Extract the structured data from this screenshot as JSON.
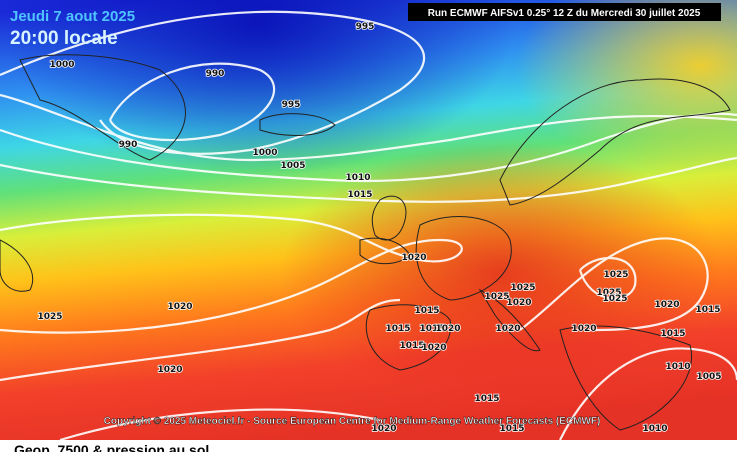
{
  "header": {
    "date": "Jeudi 7 aout 2025",
    "time": "20:00 locale",
    "run": "Run ECMWF AIFSv1 0.25° 12 Z du Mercredi 30 juillet 2025"
  },
  "footer": {
    "copyright": "Copyright © 2025 Meteociel.fr - Source European Centre for Medium-Range Weather Forecasts (ECMWF)",
    "caption": "Geop. 7500 & pression au sol"
  },
  "isobar_labels": [
    "995",
    "1000",
    "990",
    "995",
    "990",
    "1000",
    "1005",
    "1010",
    "1015",
    "1020",
    "1025",
    "1020",
    "1015",
    "1025",
    "1025",
    "1025",
    "1025",
    "1025",
    "1020",
    "1020",
    "1015",
    "1015",
    "1015",
    "1020",
    "1020",
    "1020",
    "1015",
    "1015",
    "1020",
    "1020",
    "1010",
    "1005",
    "1015",
    "1020",
    "1015",
    "1010"
  ]
}
